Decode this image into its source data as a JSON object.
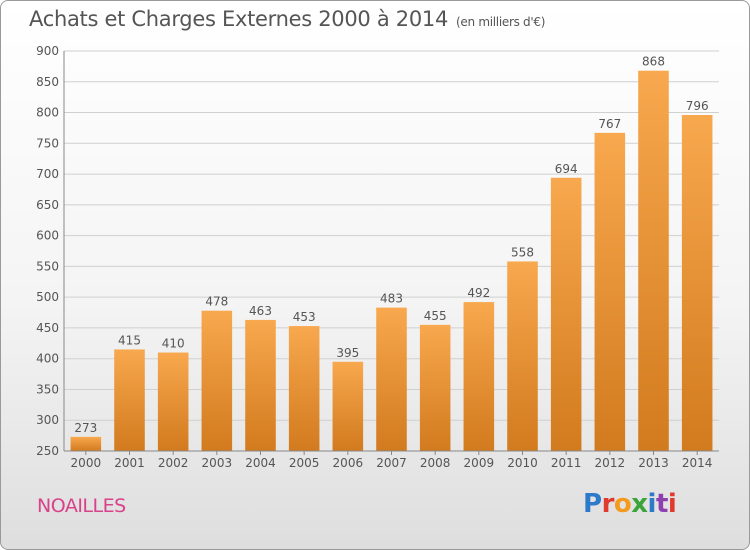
{
  "title": "Achats et Charges Externes 2000 à 2014",
  "subtitle": "(en milliers d'€)",
  "place": "NOAILLES",
  "logo": {
    "text": "Proxiti",
    "colors": [
      "#2c7ac9",
      "#e03a2f",
      "#f29b1e",
      "#3ba53b",
      "#2c7ac9",
      "#8e3fb0",
      "#e03a2f"
    ]
  },
  "colors": {
    "bar_light": "#f8a84e",
    "bar_dark": "#d27a1e",
    "grid": "#d0d0d0",
    "text": "#555555",
    "axis": "#888888"
  },
  "chart_data": {
    "type": "bar",
    "title": "Achats et Charges Externes 2000 à 2014",
    "subtitle": "(en milliers d'€)",
    "categories": [
      "2000",
      "2001",
      "2002",
      "2003",
      "2004",
      "2005",
      "2006",
      "2007",
      "2008",
      "2009",
      "2010",
      "2011",
      "2012",
      "2013",
      "2014"
    ],
    "values": [
      273,
      415,
      410,
      478,
      463,
      453,
      395,
      483,
      455,
      492,
      558,
      694,
      767,
      868,
      796
    ],
    "ylim": [
      250,
      900
    ],
    "yticks": [
      250,
      300,
      350,
      400,
      450,
      500,
      550,
      600,
      650,
      700,
      750,
      800,
      850,
      900
    ],
    "grid": true,
    "data_labels": true
  }
}
